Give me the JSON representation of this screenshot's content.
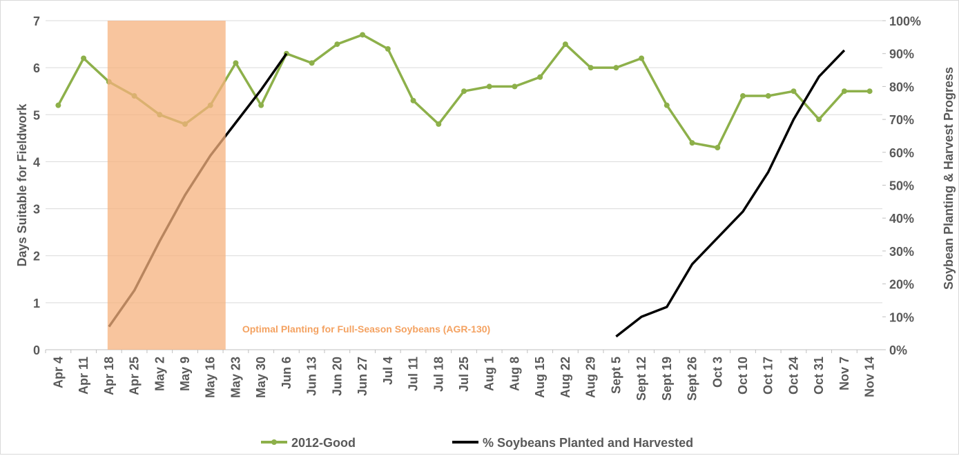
{
  "chart_data": {
    "type": "line",
    "categories": [
      "Apr 4",
      "Apr 11",
      "Apr 18",
      "Apr 25",
      "May 2",
      "May 9",
      "May 16",
      "May 23",
      "May 30",
      "Jun 6",
      "Jun 13",
      "Jun 20",
      "Jun 27",
      "Jul 4",
      "Jul 11",
      "Jul 18",
      "Jul 25",
      "Aug 1",
      "Aug 8",
      "Aug 15",
      "Aug 22",
      "Aug 29",
      "Sept 5",
      "Sept 12",
      "Sept 19",
      "Sept 26",
      "Oct 3",
      "Oct 10",
      "Oct 17",
      "Oct 24",
      "Oct 31",
      "Nov 7",
      "Nov 14"
    ],
    "y_label": "Days Suitable for Fieldwork",
    "y2_label": "Soybean Planting & Harvest Progress",
    "ylim": [
      0,
      7
    ],
    "yticks": [
      0,
      1,
      2,
      3,
      4,
      5,
      6,
      7
    ],
    "y2lim": [
      0,
      100
    ],
    "y2ticks": [
      {
        "value": 0,
        "label": "0%"
      },
      {
        "value": 10,
        "label": "10%"
      },
      {
        "value": 20,
        "label": "20%"
      },
      {
        "value": 30,
        "label": "30%"
      },
      {
        "value": 40,
        "label": "40%"
      },
      {
        "value": 50,
        "label": "50%"
      },
      {
        "value": 60,
        "label": "60%"
      },
      {
        "value": 70,
        "label": "70%"
      },
      {
        "value": 80,
        "label": "80%"
      },
      {
        "value": 90,
        "label": "90%"
      },
      {
        "value": 100,
        "label": "100%"
      }
    ],
    "grid": true,
    "series": [
      {
        "name": "2012-Good",
        "color": "#8db04a",
        "markers": true,
        "values": [
          5.2,
          6.2,
          5.7,
          5.4,
          5.0,
          4.8,
          5.2,
          6.1,
          5.2,
          6.3,
          6.1,
          6.5,
          6.7,
          6.4,
          5.3,
          4.8,
          5.5,
          5.6,
          5.6,
          5.8,
          6.5,
          6.0,
          6.0,
          6.2,
          5.2,
          4.4,
          4.3,
          5.4,
          5.4,
          5.5,
          4.9,
          5.5,
          5.5
        ]
      },
      {
        "name": "% Soybeans Planted and Harvested",
        "color": "#000000",
        "axis": "y2",
        "markers": false,
        "values": [
          null,
          null,
          7,
          18,
          33,
          47,
          59,
          69,
          79,
          90,
          null,
          null,
          null,
          null,
          null,
          null,
          null,
          null,
          null,
          null,
          null,
          null,
          4,
          10,
          13,
          26,
          34,
          42,
          54,
          70,
          83,
          91,
          null
        ]
      }
    ],
    "shaded_region": {
      "label": "Optimal Planting for Full-Season Soybeans (AGR-130)",
      "start": "Apr 18",
      "end": "May 16",
      "color": "#f6b27e"
    }
  }
}
